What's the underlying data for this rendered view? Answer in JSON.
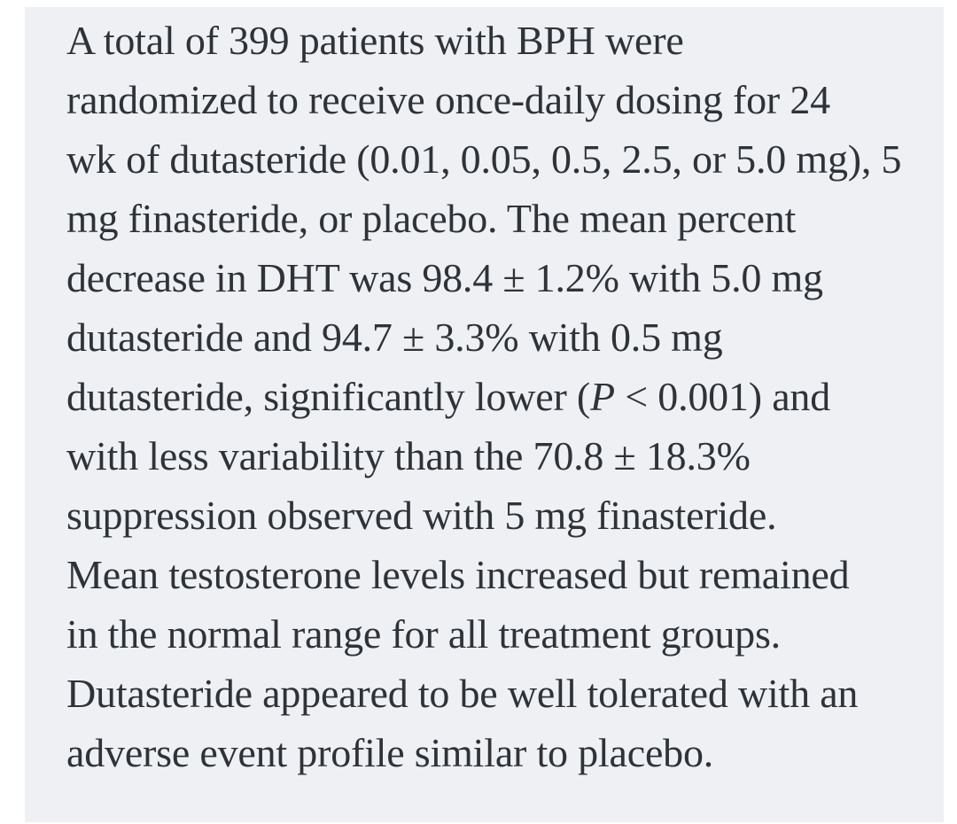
{
  "page": {
    "background_color": "#ffffff"
  },
  "panel": {
    "background_color": "#eef0f3",
    "text_color": "#2f3337"
  },
  "abstract": {
    "full_text": "A total of 399 patients with BPH were randomized to receive once-daily dosing for 24 wk of dutasteride (0.01, 0.05, 0.5, 2.5, or 5.0 mg), 5 mg finasteride, or placebo. The mean percent decrease in DHT was 98.4 ± 1.2% with 5.0 mg dutasteride and 94.7 ± 3.3% with 0.5 mg dutasteride, significantly lower (P < 0.001) and with less variability than the 70.8 ± 18.3% suppression observed with 5 mg finasteride. Mean testosterone levels increased but remained in the normal range for all treatment groups. Dutasteride appeared to be well tolerated with an adverse event profile similar to placebo.",
    "lines": [
      [
        {
          "text": "A total of 399 patients with BPH were"
        }
      ],
      [
        {
          "text": "randomized to receive once-daily dosing for 24"
        }
      ],
      [
        {
          "text": "wk of dutasteride (0.01, 0.05, 0.5, 2.5, or 5.0 mg), 5"
        }
      ],
      [
        {
          "text": "mg finasteride, or placebo. The mean percent"
        }
      ],
      [
        {
          "text": "decrease in DHT was 98.4 ± 1.2% with 5.0 mg"
        }
      ],
      [
        {
          "text": "dutasteride and 94.7 ± 3.3% with 0.5 mg"
        }
      ],
      [
        {
          "text": "dutasteride, significantly lower ("
        },
        {
          "text": "P",
          "italic": true
        },
        {
          "text": " < 0.001) and"
        }
      ],
      [
        {
          "text": "with less variability than the 70.8 ± 18.3%"
        }
      ],
      [
        {
          "text": "suppression observed with 5 mg finasteride."
        }
      ],
      [
        {
          "text": "Mean testosterone levels increased but remained"
        }
      ],
      [
        {
          "text": "in the normal range for all treatment groups."
        }
      ],
      [
        {
          "text": "Dutasteride appeared to be well tolerated with an"
        }
      ],
      [
        {
          "text": "adverse event profile similar to placebo."
        }
      ]
    ]
  }
}
